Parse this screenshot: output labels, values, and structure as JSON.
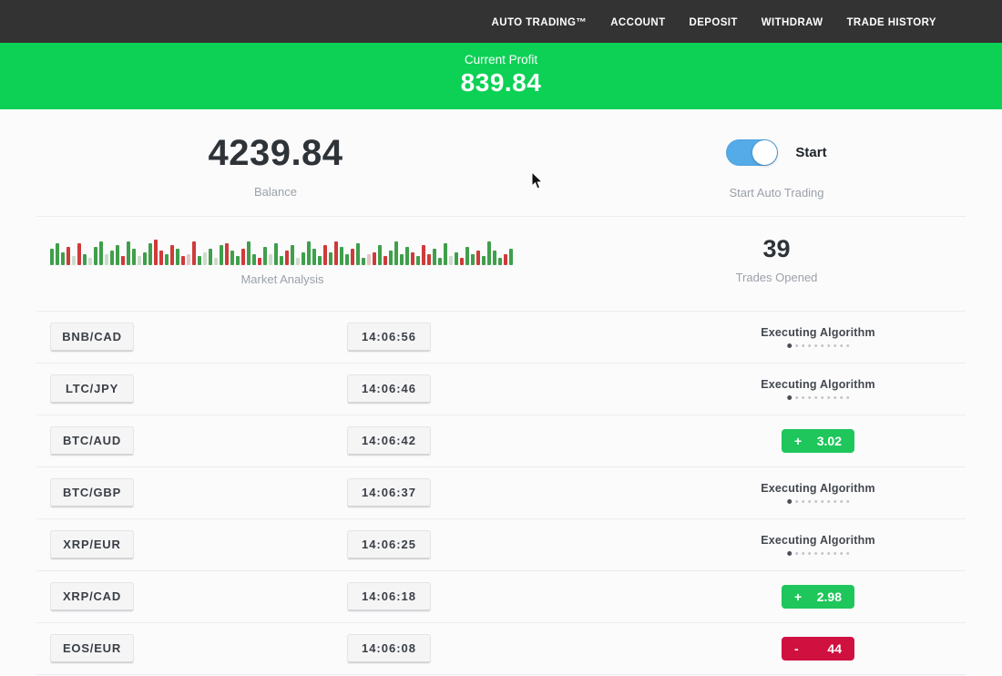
{
  "nav": {
    "items": [
      {
        "label": "AUTO TRADING™"
      },
      {
        "label": "ACCOUNT"
      },
      {
        "label": "DEPOSIT"
      },
      {
        "label": "WITHDRAW"
      },
      {
        "label": "TRADE HISTORY"
      }
    ]
  },
  "profit_banner": {
    "label": "Current Profit",
    "value": "839.84",
    "background": "#0cd155"
  },
  "account": {
    "balance_value": "4239.84",
    "balance_label": "Balance",
    "toggle_label": "Start",
    "toggle_state": "on",
    "toggle_color": "#55abe8",
    "toggle_caption": "Start Auto Trading"
  },
  "market": {
    "label": "Market Analysis",
    "trades_opened_value": "39",
    "trades_opened_label": "Trades Opened",
    "bar_colors": {
      "g": "#3f9f4b",
      "r": "#cf3a3a",
      "p": "#ccdccc",
      "q": "#e6c4c4"
    },
    "bars": [
      [
        "g",
        18
      ],
      [
        "g",
        24
      ],
      [
        "g",
        14
      ],
      [
        "r",
        20
      ],
      [
        "p",
        10
      ],
      [
        "r",
        24
      ],
      [
        "g",
        12
      ],
      [
        "p",
        8
      ],
      [
        "g",
        20
      ],
      [
        "g",
        26
      ],
      [
        "p",
        12
      ],
      [
        "g",
        16
      ],
      [
        "g",
        22
      ],
      [
        "r",
        10
      ],
      [
        "g",
        26
      ],
      [
        "g",
        18
      ],
      [
        "p",
        10
      ],
      [
        "g",
        14
      ],
      [
        "g",
        24
      ],
      [
        "r",
        28
      ],
      [
        "r",
        16
      ],
      [
        "g",
        12
      ],
      [
        "r",
        22
      ],
      [
        "g",
        18
      ],
      [
        "r",
        10
      ],
      [
        "q",
        12
      ],
      [
        "r",
        26
      ],
      [
        "g",
        10
      ],
      [
        "p",
        14
      ],
      [
        "g",
        18
      ],
      [
        "p",
        8
      ],
      [
        "g",
        22
      ],
      [
        "r",
        24
      ],
      [
        "g",
        16
      ],
      [
        "g",
        10
      ],
      [
        "r",
        18
      ],
      [
        "g",
        26
      ],
      [
        "g",
        12
      ],
      [
        "r",
        8
      ],
      [
        "g",
        20
      ],
      [
        "p",
        12
      ],
      [
        "g",
        24
      ],
      [
        "g",
        10
      ],
      [
        "r",
        16
      ],
      [
        "g",
        22
      ],
      [
        "p",
        8
      ],
      [
        "g",
        14
      ],
      [
        "g",
        26
      ],
      [
        "g",
        18
      ],
      [
        "g",
        10
      ],
      [
        "r",
        22
      ],
      [
        "g",
        14
      ],
      [
        "r",
        26
      ],
      [
        "g",
        20
      ],
      [
        "g",
        12
      ],
      [
        "r",
        18
      ],
      [
        "g",
        24
      ],
      [
        "g",
        8
      ],
      [
        "q",
        12
      ],
      [
        "r",
        14
      ],
      [
        "g",
        22
      ],
      [
        "r",
        10
      ],
      [
        "g",
        16
      ],
      [
        "g",
        26
      ],
      [
        "g",
        12
      ],
      [
        "g",
        20
      ],
      [
        "r",
        14
      ],
      [
        "g",
        10
      ],
      [
        "r",
        22
      ],
      [
        "r",
        12
      ],
      [
        "g",
        18
      ],
      [
        "g",
        8
      ],
      [
        "g",
        24
      ],
      [
        "p",
        10
      ],
      [
        "g",
        14
      ],
      [
        "r",
        8
      ],
      [
        "g",
        20
      ],
      [
        "g",
        12
      ],
      [
        "r",
        16
      ],
      [
        "g",
        10
      ],
      [
        "g",
        26
      ],
      [
        "g",
        16
      ],
      [
        "g",
        8
      ],
      [
        "r",
        12
      ],
      [
        "g",
        18
      ]
    ]
  },
  "trades": {
    "executing_label": "Executing Algorithm",
    "progress_dots": 10,
    "colors": {
      "profit": "#1ec65b",
      "loss": "#d0103f"
    },
    "rows": [
      {
        "pair": "BNB/CAD",
        "time": "14:06:56",
        "status": "executing"
      },
      {
        "pair": "LTC/JPY",
        "time": "14:06:46",
        "status": "executing"
      },
      {
        "pair": "BTC/AUD",
        "time": "14:06:42",
        "status": "profit",
        "sign": "+",
        "value": "3.02"
      },
      {
        "pair": "BTC/GBP",
        "time": "14:06:37",
        "status": "executing"
      },
      {
        "pair": "XRP/EUR",
        "time": "14:06:25",
        "status": "executing"
      },
      {
        "pair": "XRP/CAD",
        "time": "14:06:18",
        "status": "profit",
        "sign": "+",
        "value": "2.98"
      },
      {
        "pair": "EOS/EUR",
        "time": "14:06:08",
        "status": "loss",
        "sign": "-",
        "value": "44"
      }
    ]
  }
}
